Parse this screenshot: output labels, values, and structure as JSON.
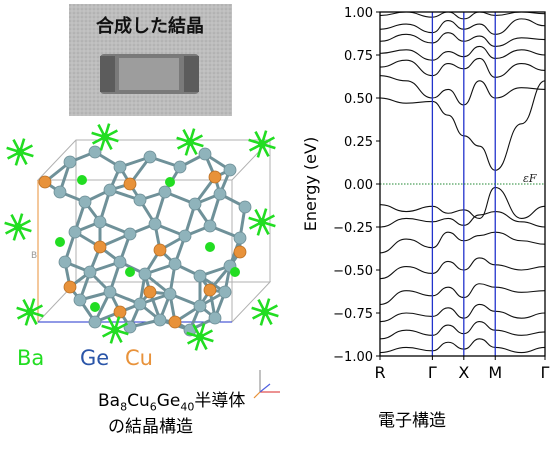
{
  "photo": {
    "title": "合成した結晶"
  },
  "structure": {
    "legend": {
      "ba": "Ba",
      "ge": "Ge",
      "cu": "Cu"
    },
    "formula": {
      "ba": "Ba",
      "ba_sub": "8",
      "cu": "Cu",
      "cu_sub": "6",
      "ge": "Ge",
      "ge_sub": "40",
      "suffix": "半導体"
    },
    "caption": "の結晶構造",
    "axis_letter": "B",
    "colors": {
      "ba": "#22dd22",
      "ge": "#8fb3bb",
      "cu": "#e8923a",
      "bond": "#6f9199"
    }
  },
  "band": {
    "caption": "電子構造",
    "ylabel": "Energy (eV)",
    "fermi_label": "εF"
  },
  "chart_data": {
    "type": "line",
    "ylabel": "Energy (eV)",
    "ylim": [
      -1.0,
      1.0
    ],
    "yticks": [
      "1.00",
      "0.75",
      "0.50",
      "0.25",
      "0.00",
      "−0.25",
      "−0.50",
      "−0.75",
      "−1.00"
    ],
    "ytick_values": [
      1.0,
      0.75,
      0.5,
      0.25,
      0.0,
      -0.25,
      -0.5,
      -0.75,
      -1.0
    ],
    "kpoints": [
      "R",
      "Γ",
      "X",
      "M",
      "Γ"
    ],
    "kpos": [
      0,
      1,
      1.6,
      2.2,
      3.15
    ],
    "fermi_level": 0.0,
    "fermi_label": "εF",
    "colors": {
      "bands": "#111111",
      "kline": "#2233cc",
      "fermi": "#228833"
    },
    "sample_x": [
      0,
      0.5,
      1,
      1.3,
      1.6,
      1.9,
      2.2,
      2.7,
      3.15
    ],
    "series": [
      {
        "values": [
          0.98,
          1.0,
          0.97,
          1.0,
          0.96,
          1.0,
          0.98,
          1.0,
          0.99
        ]
      },
      {
        "values": [
          0.9,
          0.93,
          0.88,
          0.95,
          0.9,
          0.93,
          0.87,
          0.96,
          0.92
        ]
      },
      {
        "values": [
          0.83,
          0.87,
          0.82,
          0.88,
          0.83,
          0.86,
          0.8,
          0.85,
          0.84
        ]
      },
      {
        "values": [
          0.76,
          0.78,
          0.72,
          0.77,
          0.74,
          0.8,
          0.73,
          0.78,
          0.75
        ]
      },
      {
        "values": [
          0.68,
          0.72,
          0.63,
          0.7,
          0.67,
          0.73,
          0.62,
          0.7,
          0.66
        ]
      },
      {
        "values": [
          0.63,
          0.6,
          0.5,
          0.55,
          0.46,
          0.6,
          0.5,
          0.56,
          0.55
        ]
      },
      {
        "values": [
          0.5,
          0.47,
          0.48,
          0.4,
          0.28,
          0.22,
          0.08,
          0.35,
          0.6
        ]
      },
      {
        "values": [
          -0.12,
          -0.16,
          -0.13,
          -0.17,
          -0.15,
          -0.2,
          -0.02,
          -0.2,
          -0.13
        ]
      },
      {
        "values": [
          -0.25,
          -0.2,
          -0.22,
          -0.2,
          -0.24,
          -0.18,
          -0.16,
          -0.22,
          -0.25
        ]
      },
      {
        "values": [
          -0.4,
          -0.32,
          -0.37,
          -0.28,
          -0.33,
          -0.3,
          -0.28,
          -0.33,
          -0.35
        ]
      },
      {
        "values": [
          -0.55,
          -0.48,
          -0.52,
          -0.45,
          -0.5,
          -0.43,
          -0.47,
          -0.5,
          -0.48
        ]
      },
      {
        "values": [
          -0.7,
          -0.62,
          -0.65,
          -0.6,
          -0.66,
          -0.58,
          -0.6,
          -0.63,
          -0.62
        ]
      },
      {
        "values": [
          -0.8,
          -0.75,
          -0.77,
          -0.72,
          -0.78,
          -0.7,
          -0.74,
          -0.78,
          -0.75
        ]
      },
      {
        "values": [
          -0.9,
          -0.85,
          -0.88,
          -0.82,
          -0.87,
          -0.8,
          -0.85,
          -0.88,
          -0.86
        ]
      },
      {
        "values": [
          -0.98,
          -0.95,
          -0.97,
          -0.92,
          -0.96,
          -0.9,
          -0.95,
          -0.98,
          -0.95
        ]
      }
    ]
  }
}
